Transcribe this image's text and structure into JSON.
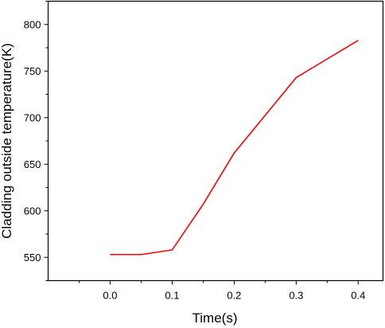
{
  "chart_data": {
    "type": "line",
    "xlabel": "Time(s)",
    "ylabel": "Cladding outside temperature(K)",
    "xlim": [
      -0.1,
      0.44
    ],
    "ylim": [
      525,
      825
    ],
    "x_ticks": [
      0.0,
      0.1,
      0.2,
      0.3,
      0.4
    ],
    "x_tick_labels": [
      "0.0",
      "0.1",
      "0.2",
      "0.3",
      "0.4"
    ],
    "y_ticks": [
      550,
      600,
      650,
      700,
      750,
      800
    ],
    "y_tick_labels": [
      "550",
      "600",
      "650",
      "700",
      "750",
      "800"
    ],
    "grid": false,
    "legend": "none",
    "series": [
      {
        "color": "#ff0000",
        "x": [
          0.0,
          0.05,
          0.1,
          0.15,
          0.2,
          0.3,
          0.4
        ],
        "y": [
          553,
          553,
          558,
          607,
          662,
          743,
          783
        ]
      }
    ]
  }
}
